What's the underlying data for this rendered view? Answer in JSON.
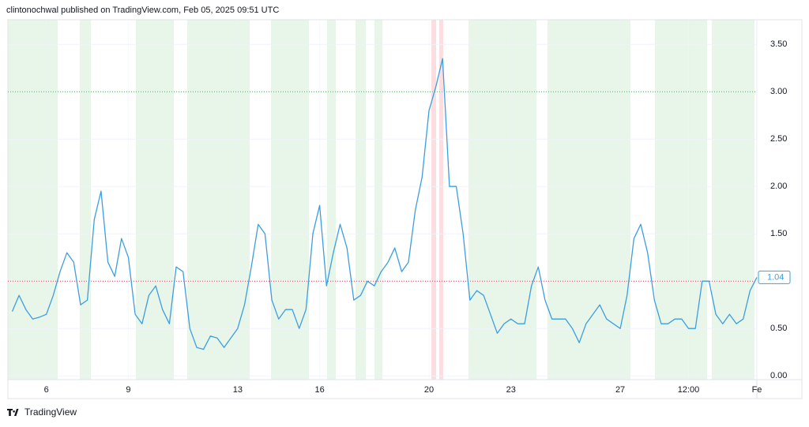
{
  "header": "clintonochwal published on TradingView.com, Feb 05, 2025 09:51 UTC",
  "footer": "TradingView",
  "chart_data": {
    "type": "line",
    "categories": [
      null,
      null,
      null,
      null,
      null,
      "6",
      null,
      null,
      null,
      null,
      null,
      null,
      null,
      null,
      null,
      null,
      null,
      "9",
      null,
      null,
      null,
      null,
      null,
      null,
      null,
      null,
      null,
      null,
      null,
      null,
      null,
      null,
      null,
      "13",
      null,
      null,
      null,
      null,
      null,
      null,
      null,
      null,
      null,
      null,
      null,
      "16",
      null,
      null,
      null,
      null,
      null,
      null,
      null,
      null,
      null,
      null,
      null,
      null,
      null,
      null,
      null,
      "20",
      null,
      null,
      null,
      null,
      null,
      null,
      null,
      null,
      null,
      null,
      null,
      "23",
      null,
      null,
      null,
      null,
      null,
      null,
      null,
      null,
      null,
      null,
      null,
      null,
      null,
      null,
      null,
      "27",
      null,
      null,
      null,
      null,
      null,
      null,
      null,
      null,
      null,
      "12:00",
      null,
      null,
      null,
      null,
      null,
      null,
      null,
      null,
      null,
      "Fe"
    ],
    "values": [
      0.68,
      0.85,
      0.7,
      0.6,
      0.62,
      0.65,
      0.85,
      1.1,
      1.3,
      1.2,
      0.75,
      0.8,
      1.65,
      1.95,
      1.2,
      1.05,
      1.45,
      1.25,
      0.65,
      0.55,
      0.85,
      0.95,
      0.7,
      0.55,
      1.15,
      1.1,
      0.5,
      0.3,
      0.28,
      0.42,
      0.4,
      0.3,
      0.4,
      0.5,
      0.75,
      1.15,
      1.6,
      1.5,
      0.8,
      0.6,
      0.7,
      0.7,
      0.5,
      0.7,
      1.5,
      1.8,
      0.95,
      1.3,
      1.6,
      1.35,
      0.8,
      0.85,
      1.0,
      0.95,
      1.1,
      1.2,
      1.35,
      1.1,
      1.2,
      1.75,
      2.1,
      2.8,
      3.05,
      3.35,
      2.0,
      2.0,
      1.5,
      0.8,
      0.9,
      0.85,
      0.65,
      0.45,
      0.55,
      0.6,
      0.55,
      0.55,
      0.95,
      1.15,
      0.8,
      0.6,
      0.6,
      0.6,
      0.5,
      0.35,
      0.55,
      0.65,
      0.75,
      0.6,
      0.55,
      0.5,
      0.85,
      1.45,
      1.6,
      1.3,
      0.8,
      0.55,
      0.55,
      0.6,
      0.6,
      0.5,
      0.5,
      1.0,
      1.0,
      0.65,
      0.55,
      0.65,
      0.55,
      0.6,
      0.9,
      1.04
    ],
    "color": "#3d9ee0",
    "ylim": [
      -0.04,
      3.76
    ],
    "yticks": [
      {
        "value": 0,
        "label": "0.00"
      },
      {
        "value": 0.5,
        "label": "0.50"
      },
      {
        "value": 1,
        "label": "1.00"
      },
      {
        "value": 1.5,
        "label": "1.50"
      },
      {
        "value": 2,
        "label": "2.00"
      },
      {
        "value": 2.5,
        "label": "2.50"
      },
      {
        "value": 3,
        "label": "3.00"
      },
      {
        "value": 3.5,
        "label": "3.50"
      }
    ],
    "reference_lines": [
      {
        "value": 3,
        "color": "#4caf50"
      },
      {
        "value": 1,
        "color": "#f23645"
      }
    ],
    "grid": true
  }
}
